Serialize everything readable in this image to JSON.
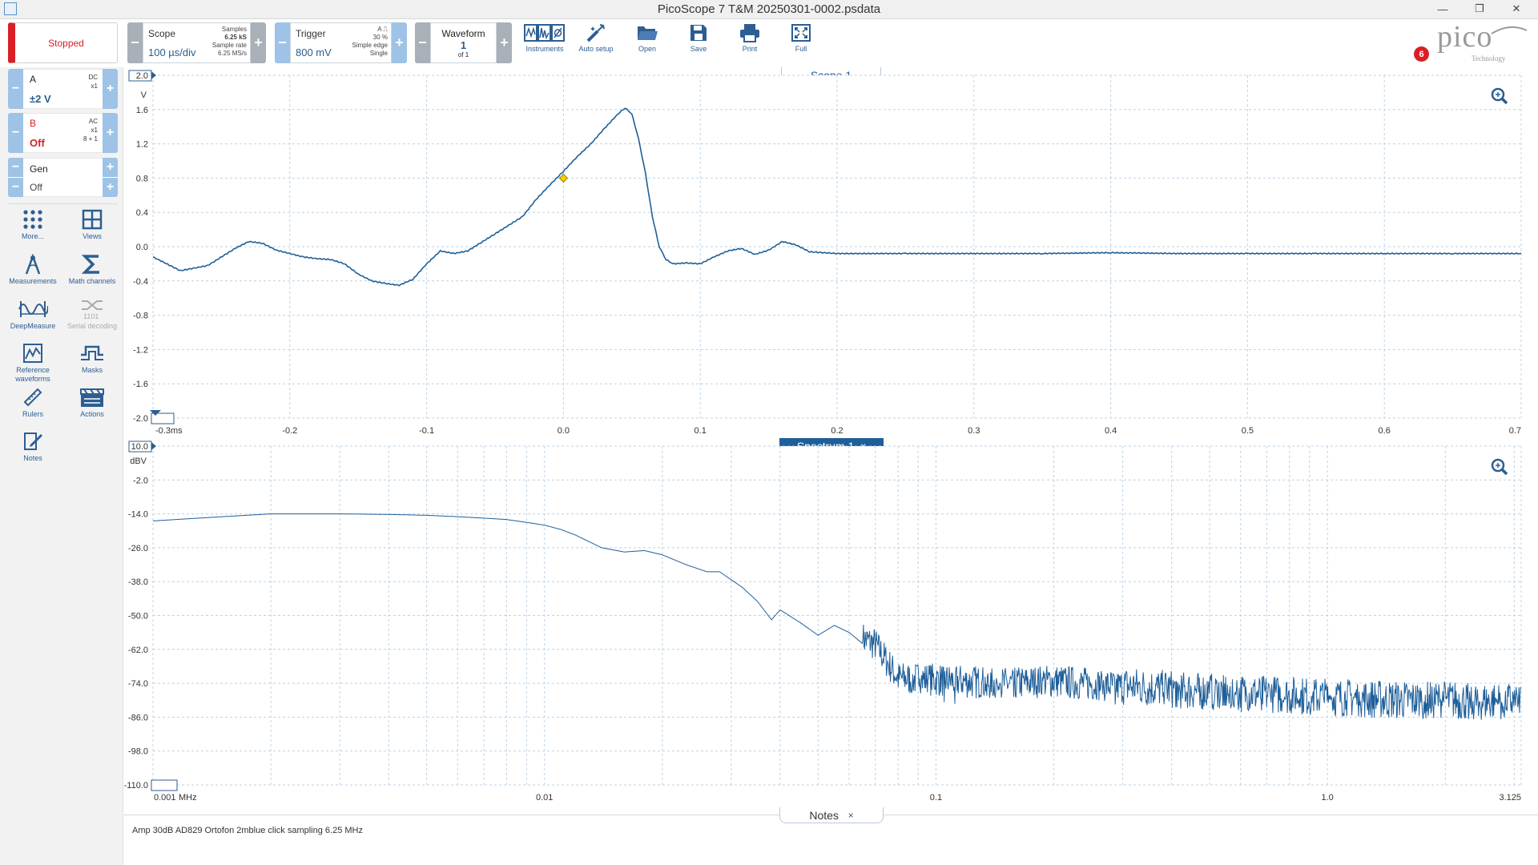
{
  "window": {
    "title": "PicoScope 7 T&M 20250301-0002.psdata"
  },
  "toolbar": {
    "status": "Stopped",
    "scope": {
      "label": "Scope",
      "value": "100 µs/div",
      "samples_lbl": "Samples",
      "samples": "6.25 kS",
      "rate_lbl": "Sample rate",
      "rate": "6.25 MS/s"
    },
    "trigger": {
      "label": "Trigger",
      "value": "800 mV",
      "channel": "A",
      "position": "30 %",
      "type": "Simple edge",
      "mode": "Single"
    },
    "waveform": {
      "label": "Waveform",
      "value": "1",
      "of": "of 1"
    },
    "tools": [
      {
        "label": "Instruments",
        "icon": "instruments-icon"
      },
      {
        "label": "Auto setup",
        "icon": "auto-setup-icon"
      },
      {
        "label": "Open",
        "icon": "open-folder-icon"
      },
      {
        "label": "Save",
        "icon": "save-icon"
      },
      {
        "label": "Print",
        "icon": "print-icon"
      },
      {
        "label": "Full",
        "icon": "fullscreen-icon"
      }
    ],
    "logo": "pico",
    "logo_sub": "Technology",
    "notifications": "6"
  },
  "channels": {
    "a": {
      "name": "A",
      "coupling": "DC",
      "probe": "x1",
      "range": "±2 V",
      "color": "#2a5d8f"
    },
    "b": {
      "name": "B",
      "coupling": "AC",
      "probe": "x1",
      "extra": "8 + 1",
      "range": "Off",
      "color": "#d91f26"
    },
    "gen": {
      "name": "Gen",
      "state": "Off"
    }
  },
  "sidebar": {
    "tools": [
      {
        "label": "More...",
        "icon": "more-icon"
      },
      {
        "label": "Views",
        "icon": "views-icon"
      },
      {
        "label": "Measurements",
        "icon": "measurements-icon"
      },
      {
        "label": "Math channels",
        "icon": "math-sigma-icon"
      },
      {
        "label": "DeepMeasure",
        "icon": "deepmeasure-icon"
      },
      {
        "label": "Serial decoding",
        "icon": "serial-decoding-icon"
      },
      {
        "label": "Reference waveforms",
        "icon": "reference-waveforms-icon"
      },
      {
        "label": "Masks",
        "icon": "masks-icon"
      },
      {
        "label": "Rulers",
        "icon": "rulers-icon"
      },
      {
        "label": "Actions",
        "icon": "actions-icon"
      },
      {
        "label": "Notes",
        "icon": "notes-icon"
      }
    ]
  },
  "scope_view": {
    "tab": "Scope 1",
    "y_unit": "V",
    "y_ticks": [
      "2.0",
      "1.6",
      "1.2",
      "0.8",
      "0.4",
      "0.0",
      "-0.4",
      "-0.8",
      "-1.2",
      "-1.6",
      "-2.0"
    ],
    "x_ticks": [
      "-0.3",
      "-0.2",
      "-0.1",
      "0.0",
      "0.1",
      "0.2",
      "0.3",
      "0.4",
      "0.5",
      "0.6",
      "0.7"
    ],
    "x_unit": "ms",
    "trace_color": "#1f5f99",
    "marker_color": "#f0d000"
  },
  "spectrum_view": {
    "tab": "Spectrum 1",
    "close": "×",
    "y_unit": "dBV",
    "y_ticks": [
      "10.0",
      "-2.0",
      "-14.0",
      "-26.0",
      "-38.0",
      "-50.0",
      "-62.0",
      "-74.0",
      "-86.0",
      "-98.0",
      "-110.0"
    ],
    "x_ticks": [
      "0.001",
      "0.01",
      "0.1",
      "1.0",
      "3.125"
    ],
    "x_unit": "MHz",
    "trace_color": "#1f5f99"
  },
  "notes": {
    "tab": "Notes",
    "close": "×",
    "text": "Amp 30dB AD829 Ortofon 2mblue click sampling 6.25 MHz"
  },
  "chart_data": [
    {
      "type": "line",
      "title": "Scope 1",
      "xlabel": "ms",
      "ylabel": "V",
      "xlim": [
        -0.3,
        0.7
      ],
      "ylim": [
        -2.0,
        2.0
      ],
      "grid": true,
      "series": [
        {
          "name": "A",
          "x": [
            -0.3,
            -0.28,
            -0.26,
            -0.24,
            -0.23,
            -0.22,
            -0.21,
            -0.2,
            -0.19,
            -0.18,
            -0.17,
            -0.16,
            -0.15,
            -0.14,
            -0.13,
            -0.12,
            -0.11,
            -0.1,
            -0.09,
            -0.08,
            -0.07,
            -0.06,
            -0.05,
            -0.04,
            -0.03,
            -0.02,
            -0.01,
            0.0,
            0.01,
            0.02,
            0.03,
            0.04,
            0.045,
            0.05,
            0.055,
            0.06,
            0.065,
            0.07,
            0.075,
            0.08,
            0.09,
            0.1,
            0.11,
            0.12,
            0.13,
            0.14,
            0.15,
            0.16,
            0.17,
            0.18,
            0.2,
            0.25,
            0.3,
            0.35,
            0.4,
            0.45,
            0.5,
            0.55,
            0.6,
            0.65,
            0.7
          ],
          "y": [
            -0.12,
            -0.28,
            -0.22,
            -0.02,
            0.06,
            0.04,
            -0.04,
            -0.08,
            -0.12,
            -0.14,
            -0.15,
            -0.2,
            -0.32,
            -0.4,
            -0.43,
            -0.45,
            -0.38,
            -0.2,
            -0.05,
            -0.08,
            -0.05,
            0.05,
            0.15,
            0.25,
            0.35,
            0.55,
            0.72,
            0.88,
            1.05,
            1.2,
            1.38,
            1.55,
            1.62,
            1.55,
            1.25,
            0.85,
            0.35,
            0.0,
            -0.15,
            -0.2,
            -0.19,
            -0.2,
            -0.12,
            -0.05,
            -0.02,
            -0.09,
            -0.04,
            0.06,
            0.02,
            -0.06,
            -0.08,
            -0.08,
            -0.08,
            -0.08,
            -0.07,
            -0.08,
            -0.08,
            -0.08,
            -0.08,
            -0.08,
            -0.08
          ]
        }
      ],
      "markers": [
        {
          "x": 0.0,
          "y": 0.8
        }
      ]
    },
    {
      "type": "line",
      "title": "Spectrum 1",
      "xlabel": "MHz",
      "ylabel": "dBV",
      "x_scale": "log",
      "xlim": [
        0.001,
        3.125
      ],
      "ylim": [
        -110.0,
        10.0
      ],
      "grid": true,
      "series": [
        {
          "name": "A",
          "x": [
            0.001,
            0.0015,
            0.002,
            0.003,
            0.004,
            0.005,
            0.006,
            0.007,
            0.008,
            0.009,
            0.01,
            0.011,
            0.012,
            0.014,
            0.016,
            0.018,
            0.02,
            0.023,
            0.026,
            0.028,
            0.032,
            0.035,
            0.038,
            0.04,
            0.045,
            0.05,
            0.055,
            0.06,
            0.065,
            0.07,
            0.08,
            0.1,
            0.15,
            0.2,
            0.3,
            0.5,
            0.7,
            1.0,
            1.5,
            2.0,
            2.5,
            3.0,
            3.125
          ],
          "y": [
            -16.5,
            -15.0,
            -14.0,
            -14.0,
            -14.2,
            -14.5,
            -15.0,
            -15.5,
            -16.0,
            -17.0,
            -18.0,
            -19.5,
            -21.5,
            -26.0,
            -27.5,
            -27.0,
            -28.5,
            -32.0,
            -34.5,
            -34.5,
            -40.0,
            -45.0,
            -51.5,
            -48.0,
            -52.5,
            -57.0,
            -53.5,
            -56.0,
            -60.0,
            -62.0,
            -74.0,
            -74.5,
            -76.0,
            -75.0,
            -77.0,
            -79.0,
            -80.0,
            -81.0,
            -82.0,
            -82.0,
            -82.5,
            -82.5,
            -81.5
          ]
        }
      ]
    }
  ]
}
